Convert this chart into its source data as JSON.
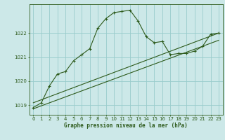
{
  "title": "Graphe pression niveau de la mer (hPa)",
  "bg_color": "#cce8e8",
  "grid_color": "#99cccc",
  "line_color": "#2d5a1b",
  "xlim": [
    -0.5,
    23.5
  ],
  "ylim": [
    1018.6,
    1023.2
  ],
  "yticks": [
    1019,
    1020,
    1021,
    1022
  ],
  "xticks": [
    0,
    1,
    2,
    3,
    4,
    5,
    6,
    7,
    8,
    9,
    10,
    11,
    12,
    13,
    14,
    15,
    16,
    17,
    18,
    19,
    20,
    21,
    22,
    23
  ],
  "series1_x": [
    0,
    1,
    2,
    3,
    4,
    5,
    6,
    7,
    8,
    9,
    10,
    11,
    12,
    13,
    14,
    15,
    16,
    17,
    18,
    19,
    20,
    21,
    22,
    23
  ],
  "series1_y": [
    1018.9,
    1019.1,
    1019.8,
    1020.3,
    1020.4,
    1020.85,
    1021.1,
    1021.35,
    1022.2,
    1022.6,
    1022.85,
    1022.9,
    1022.95,
    1022.5,
    1021.85,
    1021.6,
    1021.65,
    1021.1,
    1021.15,
    1021.15,
    1021.25,
    1021.45,
    1021.95,
    1022.0
  ],
  "trend_x": [
    0,
    23
  ],
  "trend_y": [
    1019.1,
    1022.0
  ],
  "trend2_x": [
    0,
    23
  ],
  "trend2_y": [
    1018.85,
    1021.7
  ]
}
